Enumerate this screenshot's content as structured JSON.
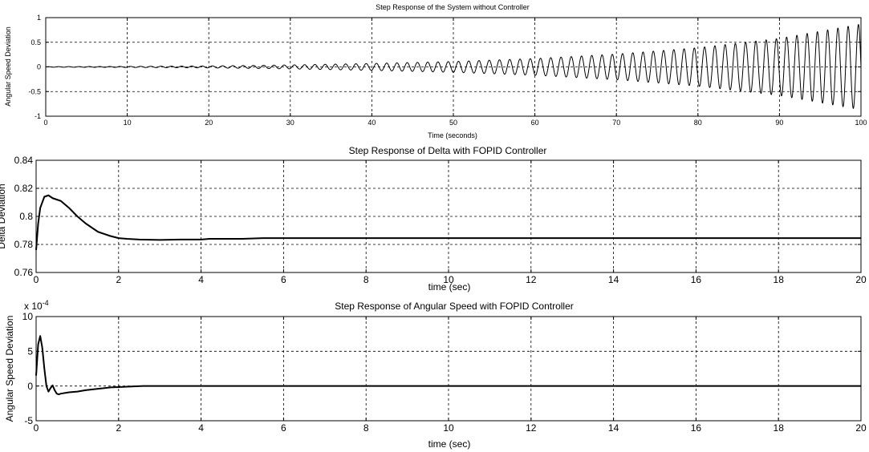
{
  "chart_data": [
    {
      "type": "line",
      "title": "Step Response of the System without Controller",
      "xlabel": "Time (seconds)",
      "ylabel": "Angular Speed Deviation",
      "xlim": [
        0,
        100
      ],
      "ylim": [
        -1,
        1
      ],
      "xticks": [
        0,
        10,
        20,
        30,
        40,
        50,
        60,
        70,
        80,
        90,
        100
      ],
      "yticks": [
        -1,
        -0.5,
        0,
        0.5,
        1
      ],
      "grid": true,
      "series": [
        {
          "oscillation_frequency_hz": 0.795,
          "envelope": {
            "t": [
              0,
              10,
              20,
              30,
              40,
              50,
              60,
              70,
              80,
              90,
              100
            ],
            "amplitude": [
              0.005,
              0.01,
              0.02,
              0.04,
              0.07,
              0.11,
              0.17,
              0.26,
              0.39,
              0.58,
              0.87
            ]
          }
        }
      ]
    },
    {
      "type": "line",
      "title": "Step Response of Delta with FOPID Controller",
      "xlabel": "time (sec)",
      "ylabel": "Delta Deviation",
      "xlim": [
        0,
        20
      ],
      "ylim": [
        0.76,
        0.84
      ],
      "xticks": [
        0,
        2,
        4,
        6,
        8,
        10,
        12,
        14,
        16,
        18,
        20
      ],
      "yticks": [
        0.76,
        0.78,
        0.8,
        0.82,
        0.84
      ],
      "grid": true,
      "series": [
        {
          "x": [
            0,
            0.05,
            0.1,
            0.2,
            0.3,
            0.4,
            0.5,
            0.6,
            0.8,
            1.0,
            1.2,
            1.5,
            1.8,
            2.0,
            2.2,
            2.5,
            3.0,
            3.5,
            4.0,
            4.2,
            5.0,
            5.5,
            6,
            8,
            10,
            12,
            14,
            16,
            18,
            20
          ],
          "y": [
            0.776,
            0.795,
            0.806,
            0.814,
            0.815,
            0.813,
            0.812,
            0.811,
            0.806,
            0.8,
            0.795,
            0.789,
            0.786,
            0.7845,
            0.784,
            0.7835,
            0.7832,
            0.7835,
            0.7835,
            0.784,
            0.784,
            0.7845,
            0.7845,
            0.7845,
            0.7845,
            0.7845,
            0.7845,
            0.7845,
            0.7845,
            0.7845
          ]
        }
      ]
    },
    {
      "type": "line",
      "title": "Step Response of Angular Speed with FOPID Controller",
      "xlabel": "time (sec)",
      "ylabel": "Angular Speed Deviation",
      "scale_label": "x 10",
      "scale_exponent": "-4",
      "xlim": [
        0,
        20
      ],
      "ylim": [
        -5,
        10
      ],
      "xticks": [
        0,
        2,
        4,
        6,
        8,
        10,
        12,
        14,
        16,
        18,
        20
      ],
      "yticks": [
        -5,
        0,
        5,
        10
      ],
      "grid": true,
      "series": [
        {
          "x": [
            0,
            0.05,
            0.1,
            0.15,
            0.2,
            0.25,
            0.3,
            0.35,
            0.4,
            0.45,
            0.5,
            0.55,
            0.6,
            0.8,
            1.0,
            1.2,
            1.5,
            1.8,
            2.0,
            2.2,
            2.6,
            3,
            4,
            6,
            8,
            10,
            12,
            14,
            16,
            18,
            20
          ],
          "y": [
            1.5,
            6.0,
            7.2,
            5.5,
            2.5,
            0.0,
            -0.8,
            -0.3,
            0.1,
            -0.6,
            -1.1,
            -1.2,
            -1.1,
            -0.9,
            -0.8,
            -0.6,
            -0.4,
            -0.2,
            -0.15,
            -0.1,
            0.0,
            0.0,
            0.0,
            0.0,
            0.0,
            0.0,
            0.0,
            0.0,
            0.0,
            0.0,
            0.0
          ]
        }
      ]
    }
  ]
}
